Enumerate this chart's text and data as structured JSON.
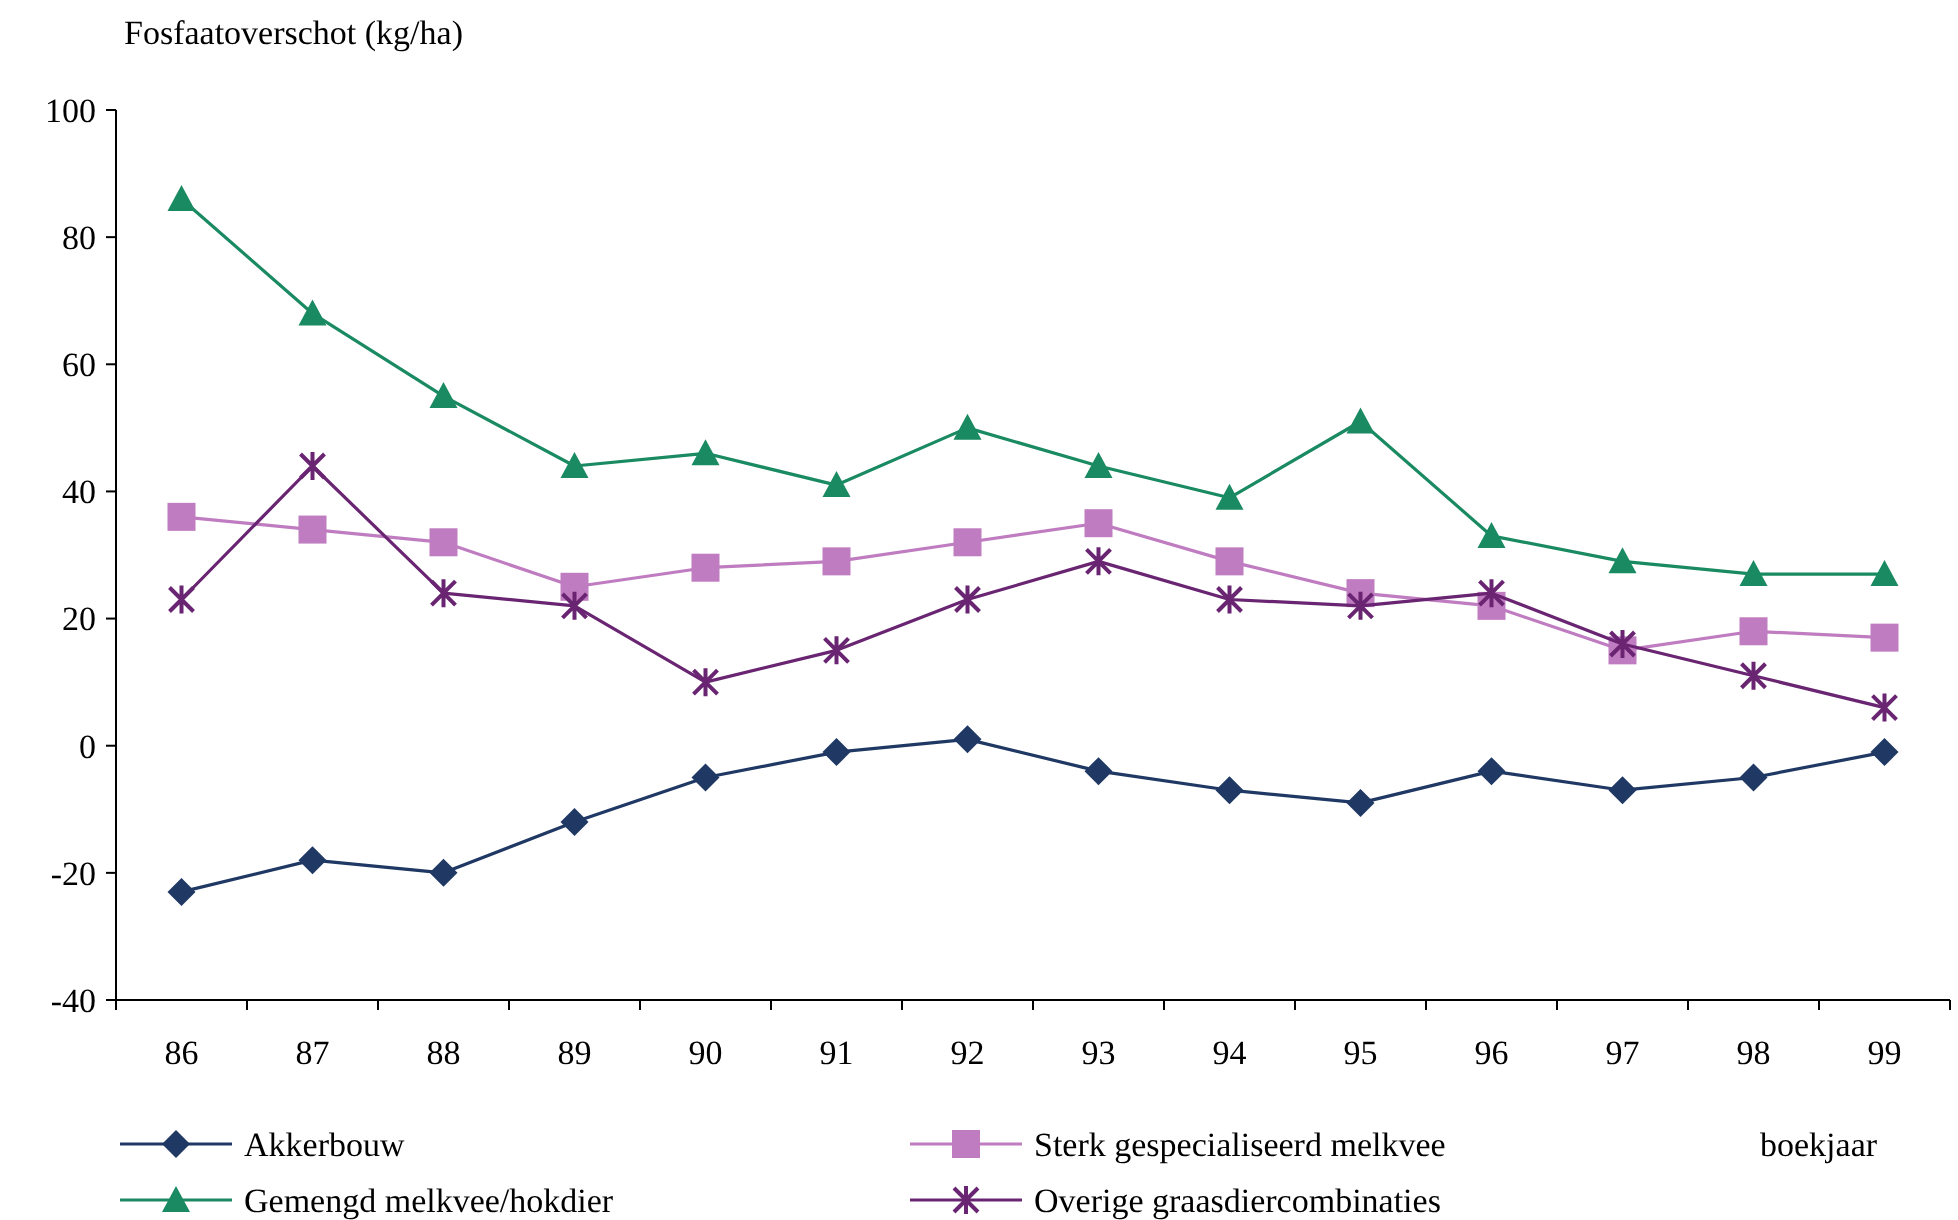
{
  "chart_data": {
    "type": "line",
    "ylabel": "Fosfaatoverschot (kg/ha)",
    "xlabel": "boekjaar",
    "categories": [
      "86",
      "87",
      "88",
      "89",
      "90",
      "91",
      "92",
      "93",
      "94",
      "95",
      "96",
      "97",
      "98",
      "99"
    ],
    "ylim": [
      -40,
      100
    ],
    "yticks": [
      -40,
      -20,
      0,
      20,
      40,
      60,
      80,
      100
    ],
    "grid": false,
    "legend": "bottom",
    "series": [
      {
        "name": "Akkerbouw",
        "color": "#1f3864",
        "marker": "diamond",
        "values": [
          -23,
          -18,
          -20,
          -12,
          -5,
          -1,
          1,
          -4,
          -7,
          -9,
          -4,
          -7,
          -5,
          -1
        ]
      },
      {
        "name": "Sterk gespecialiseerd melkvee",
        "color": "#c07cc0",
        "marker": "square",
        "values": [
          36,
          34,
          32,
          25,
          28,
          29,
          32,
          35,
          29,
          24,
          22,
          15,
          18,
          17
        ]
      },
      {
        "name": "Gemengd melkvee/hokdier",
        "color": "#1a8a62",
        "marker": "triangle",
        "values": [
          86,
          68,
          55,
          44,
          46,
          41,
          50,
          44,
          39,
          51,
          33,
          29,
          27,
          27
        ]
      },
      {
        "name": "Overige graasdiercombinaties",
        "color": "#6a2572",
        "marker": "cross",
        "values": [
          23,
          44,
          24,
          22,
          10,
          15,
          23,
          29,
          23,
          22,
          24,
          16,
          11,
          6
        ]
      }
    ]
  }
}
